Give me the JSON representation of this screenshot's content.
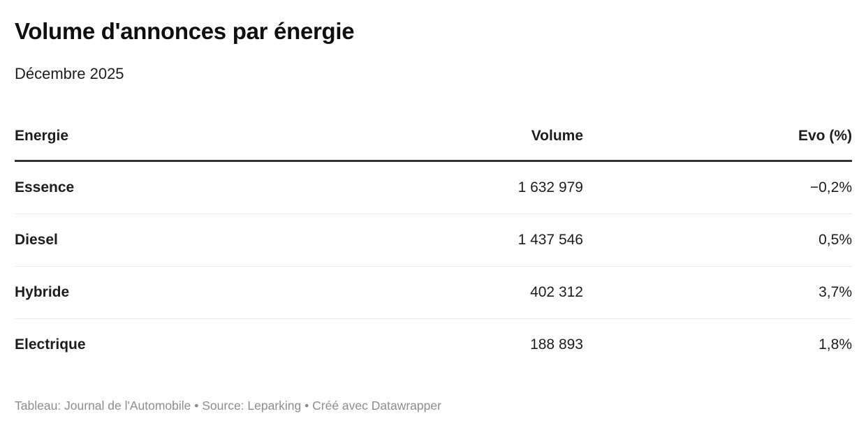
{
  "title": "Volume d'annonces par énergie",
  "subtitle": "Décembre 2025",
  "table": {
    "columns": [
      {
        "label": "Energie",
        "align": "left"
      },
      {
        "label": "Volume",
        "align": "right"
      },
      {
        "label": "Evo (%)",
        "align": "right"
      }
    ],
    "rows": [
      {
        "energie": "Essence",
        "volume": "1 632 979",
        "evo": "−0,2%"
      },
      {
        "energie": "Diesel",
        "volume": "1 437 546",
        "evo": "0,5%"
      },
      {
        "energie": "Hybride",
        "volume": "402 312",
        "evo": "3,7%"
      },
      {
        "energie": "Electrique",
        "volume": "188 893",
        "evo": "1,8%"
      }
    ]
  },
  "footer": {
    "text": "Tableau: Journal de l'Automobile • Source: Leparking • Créé avec Datawrapper"
  },
  "colors": {
    "text": "#1d1d1d",
    "title": "#0f0f0f",
    "header_rule": "#333333",
    "row_separator": "#e9e9e9",
    "footer_text": "#8d8d8d",
    "background": "#ffffff"
  },
  "chart_data": {
    "type": "table",
    "title": "Volume d'annonces par énergie",
    "subtitle": "Décembre 2025",
    "columns": [
      "Energie",
      "Volume",
      "Evo (%)"
    ],
    "rows": [
      [
        "Essence",
        1632979,
        -0.2
      ],
      [
        "Diesel",
        1437546,
        0.5
      ],
      [
        "Hybride",
        402312,
        3.7
      ],
      [
        "Electrique",
        188893,
        1.8
      ]
    ],
    "layout_hints": {
      "volume_column_align": "right",
      "evo_column_align": "right",
      "header_rule": "thick-dark",
      "row_separators": "light-gray",
      "last_row_separator": false
    }
  }
}
